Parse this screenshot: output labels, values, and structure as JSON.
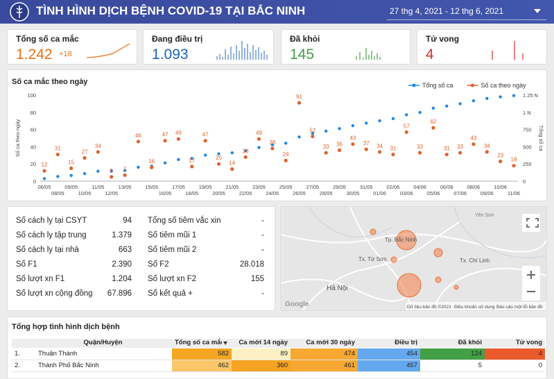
{
  "header": {
    "title": "TÌNH HÌNH DỊCH BỆNH COVID-19 TẠI BẮC NINH",
    "date_range": "27 thg 4, 2021 - 12 thg 6, 2021"
  },
  "kpis": [
    {
      "label": "Tổng số ca mắc",
      "value": "1.242",
      "delta": "+18"
    },
    {
      "label": "Đang điều trị",
      "value": "1.093"
    },
    {
      "label": "Đã khỏi",
      "value": "145"
    },
    {
      "label": "Tử vong",
      "value": "4"
    }
  ],
  "chart_data": {
    "type": "line",
    "title": "Số ca mắc theo ngày",
    "ylabel": "Số ca theo ngày",
    "y2label": "Tổng số ca",
    "categories": [
      "06/05",
      "08/05",
      "09/05",
      "10/05",
      "11/05",
      "12/05",
      "13/05",
      null,
      "15/05",
      "16/05",
      "17/05",
      "18/05",
      "19/05",
      "20/05",
      "21/05",
      "22/05",
      "23/05",
      "24/05",
      "25/05",
      "26/05",
      "27/05",
      "28/05",
      "29/05",
      "30/05",
      "31/05",
      "01/06",
      "02/06",
      "03/06",
      "04/06",
      "05/06",
      "06/06",
      "07/06",
      "08/06",
      "09/06",
      "10/06",
      "11/06"
    ],
    "series": [
      {
        "name": "Tổng số ca",
        "color": "#1e88e5",
        "axis": "y2",
        "values": [
          37,
          68,
          83,
          110,
          144,
          149,
          156,
          202,
          218,
          265,
          314,
          331,
          378,
          398,
          412,
          440,
          489,
          527,
          551,
          642,
          694,
          727,
          763,
          806,
          843,
          877,
          908,
          965,
          998,
          1060,
          1091,
          1124,
          1167,
          1201,
          1224,
          1242
        ]
      },
      {
        "name": "Số ca theo ngày",
        "color": "#e0622b",
        "values": [
          12,
          31,
          15,
          27,
          34,
          5,
          7,
          46,
          16,
          47,
          49,
          17,
          47,
          20,
          14,
          28,
          49,
          38,
          24,
          91,
          52,
          33,
          36,
          43,
          37,
          34,
          31,
          57,
          33,
          62,
          31,
          33,
          43,
          34,
          23,
          18
        ]
      }
    ],
    "ylim": [
      0,
      100
    ],
    "yticks": [
      0,
      20,
      40,
      60,
      80,
      100
    ],
    "y2lim": [
      0,
      1250
    ],
    "y2ticks": [
      0,
      250,
      500,
      750,
      {
        "value": 1000,
        "label": "1 N"
      },
      {
        "value": 1250,
        "label": "1.25 N"
      }
    ],
    "grid": false,
    "legend": "top-right"
  },
  "stats": {
    "rows": [
      [
        "Số cách ly tại CSYT",
        "94",
        "Tổng số tiêm vắc xin",
        "-"
      ],
      [
        "Số cách ly tập trung",
        "1.379",
        "Số tiêm mũi 1",
        "-"
      ],
      [
        "Số cách ly tại nhà",
        "663",
        "Số tiêm mũi 2",
        "-"
      ],
      [
        "Số F1",
        "2.390",
        "Số F2",
        "28.018"
      ],
      [
        "Số lượt xn F1",
        "1.204",
        "Số lượt xn F2",
        "155"
      ],
      [
        "Số lượt xn cộng đồng",
        "67.896",
        "Số kết quả +",
        "-"
      ]
    ]
  },
  "map": {
    "labels": [
      "Tp. Bắc Ninh",
      "Tx. Từ Sơn",
      "Hà Nội",
      "Tx. Chí Linh",
      "Yên Sơn"
    ],
    "attribution": [
      "Dữ liệu bản đồ ©2021",
      "Điều khoản sử dụng",
      "Báo cáo một lỗi bản đồ"
    ]
  },
  "table": {
    "title": "Tổng hợp tình hình dịch bệnh",
    "headers": [
      "Quận/Huyện",
      "Tổng số ca mắc",
      "Ca mới 14 ngày",
      "Ca mới 30 ngày",
      "Điều trị",
      "Đã khỏi",
      "Tử vong"
    ],
    "rows": [
      [
        "1.",
        "Thuận Thành",
        "582",
        "89",
        "474",
        "454",
        "124",
        "4"
      ],
      [
        "2.",
        "Thành Phố Bắc Ninh",
        "462",
        "360",
        "461",
        "457",
        "5",
        "0"
      ]
    ]
  }
}
